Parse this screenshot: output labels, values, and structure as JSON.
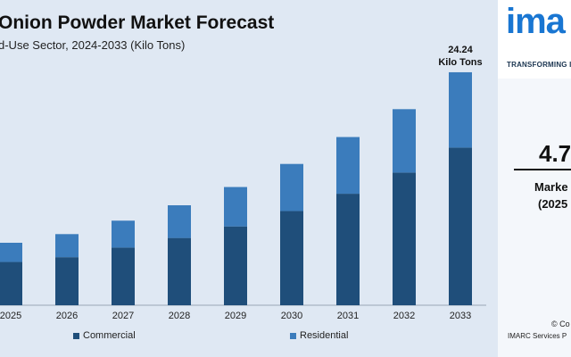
{
  "chart_data": {
    "type": "bar",
    "stacked": true,
    "title": "Onion Powder Market Forecast",
    "subtitle": "d-Use Sector, 2024-2033 (Kilo Tons)",
    "categories": [
      "2025",
      "2026",
      "2027",
      "2028",
      "2029",
      "2030",
      "2031",
      "2032",
      "2033"
    ],
    "series": [
      {
        "name": "Commercial",
        "values": [
          4.5,
          5.0,
          6.0,
          7.0,
          8.2,
          9.8,
          11.6,
          13.8,
          16.4
        ]
      },
      {
        "name": "Residential",
        "values": [
          2.0,
          2.4,
          2.8,
          3.4,
          4.1,
          4.9,
          5.9,
          6.6,
          7.84
        ]
      }
    ],
    "annotation": {
      "category": "2033",
      "line1": "24.24",
      "line2": "Kilo Tons"
    },
    "ylim": [
      0,
      26
    ],
    "grid": false,
    "legend_position": "bottom",
    "colors": {
      "Commercial": "#1f4e7a",
      "Residential": "#3b7cbc"
    }
  },
  "side_panel": {
    "logo_text": "ima",
    "tagline": "TRANSFORMING I",
    "big_value": "4.7",
    "metric_label": "Marke",
    "metric_sub": "(2025",
    "copyright": "© Co",
    "company": "IMARC Services P"
  }
}
